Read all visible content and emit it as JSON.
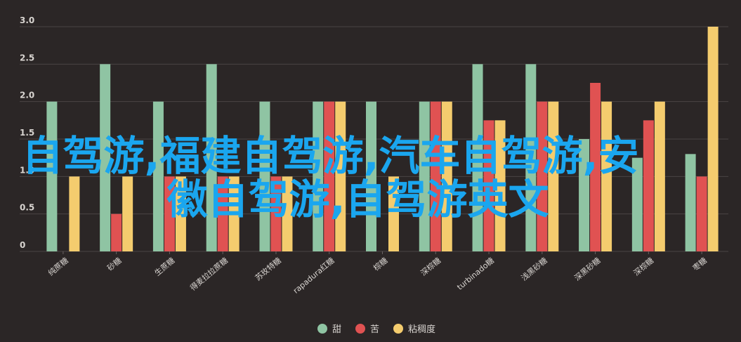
{
  "overlay": {
    "line1": "自驾游,福建自驾游,汽车自驾游,安",
    "line2": "徽自驾游,自驾游英文"
  },
  "chart_data": {
    "type": "bar",
    "categories": [
      "纯蔗糖",
      "砂糖",
      "生蔗糖",
      "得麦拉拉蔗糖",
      "苏玫特糖",
      "rapadura红糖",
      "棕糖",
      "深棕糖",
      "turbinado糖",
      "浅黑砂糖",
      "深黑砂糖",
      "深棕糖",
      "枣糖"
    ],
    "series": [
      {
        "name": "甜",
        "color": "#8fc4a3",
        "values": [
          2.0,
          2.5,
          2.0,
          2.5,
          2.0,
          2.0,
          2.0,
          2.0,
          2.5,
          2.5,
          1.5,
          1.25,
          1.3
        ]
      },
      {
        "name": "苦",
        "color": "#e05252",
        "values": [
          0,
          0.5,
          1.0,
          1.0,
          1.0,
          2.0,
          0,
          2.0,
          1.75,
          2.0,
          2.25,
          1.75,
          1.0
        ]
      },
      {
        "name": "粘稠度",
        "color": "#f4cc6e",
        "values": [
          1.0,
          1.0,
          1.0,
          1.0,
          1.0,
          2.0,
          1.0,
          2.0,
          1.75,
          2.0,
          2.0,
          2.0,
          3.0
        ]
      }
    ],
    "yticks": [
      "0",
      "0.5",
      "1.0",
      "1.5",
      "2.0",
      "2.5",
      "3.0"
    ],
    "ylim": [
      0,
      3.0
    ],
    "grid": true,
    "legend": "bottom"
  }
}
